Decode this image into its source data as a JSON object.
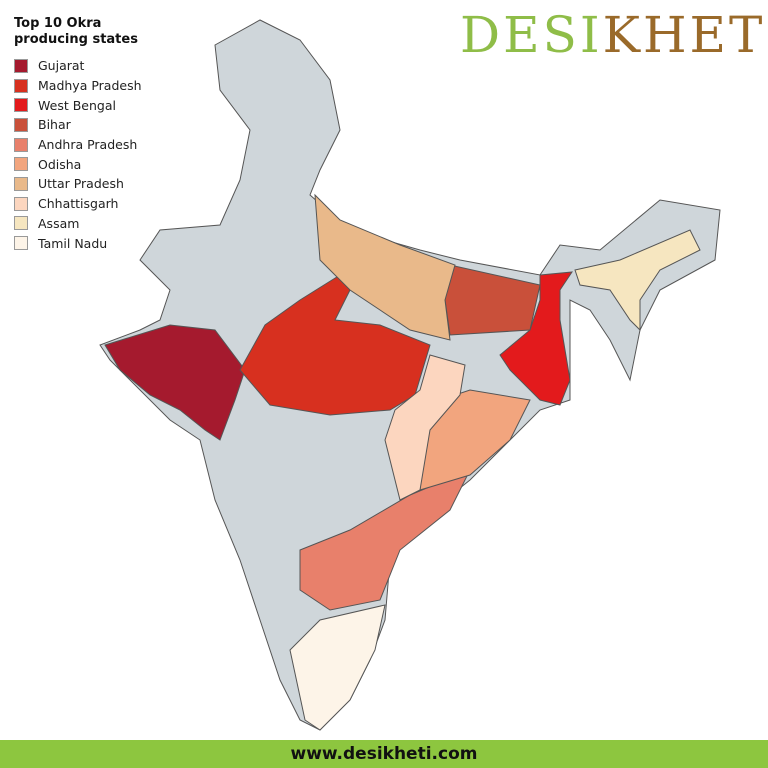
{
  "legend": {
    "title": "Top 10 Okra producing states",
    "items": [
      {
        "name": "Gujarat",
        "color": "#a51a2e"
      },
      {
        "name": "Madhya Pradesh",
        "color": "#d7301f"
      },
      {
        "name": "West Bengal",
        "color": "#e31a1c"
      },
      {
        "name": "Bihar",
        "color": "#c9503a"
      },
      {
        "name": "Andhra Pradesh",
        "color": "#e8806b"
      },
      {
        "name": "Odisha",
        "color": "#f2a57e"
      },
      {
        "name": "Uttar Pradesh",
        "color": "#e9b98a"
      },
      {
        "name": "Chhattisgarh",
        "color": "#fcd6bf"
      },
      {
        "name": "Assam",
        "color": "#f6e6c0"
      },
      {
        "name": "Tamil Nadu",
        "color": "#fdf4e8"
      }
    ]
  },
  "brand": {
    "first": "DESI",
    "second": "KHETI"
  },
  "footer": {
    "url": "www.desikheti.com"
  }
}
